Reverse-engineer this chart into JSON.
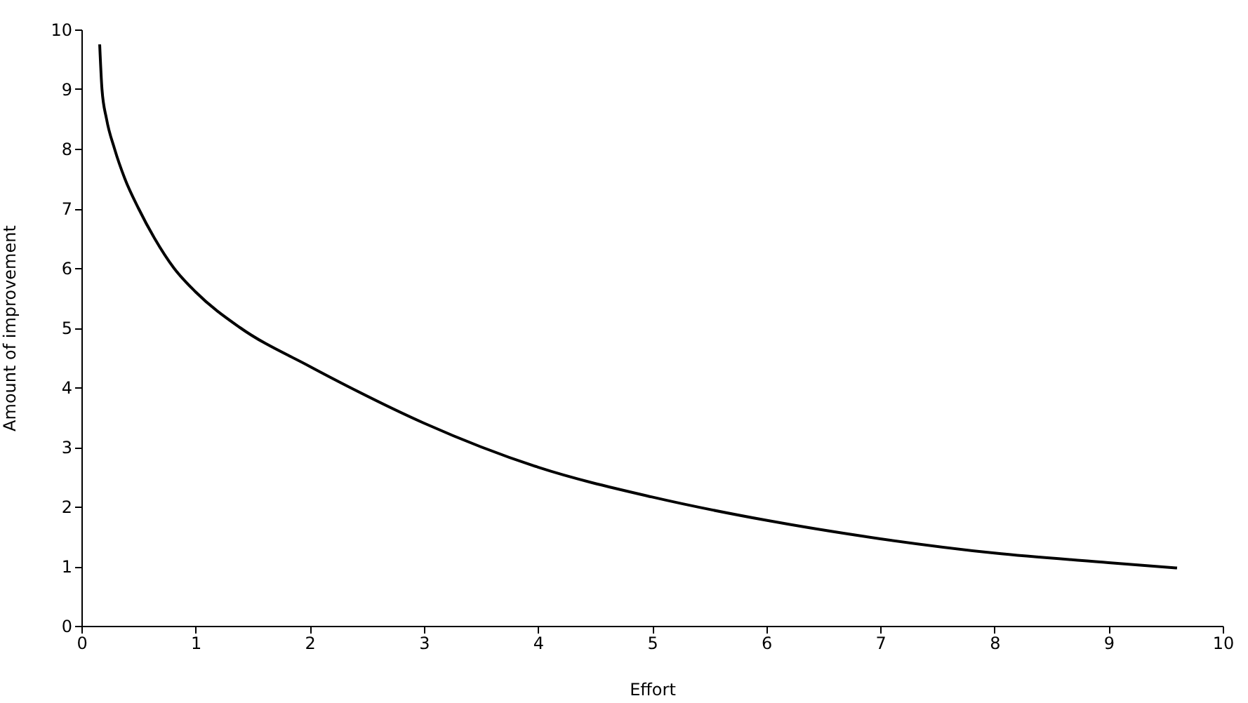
{
  "chart_data": {
    "type": "line",
    "xlabel": "Effort",
    "ylabel": "Amount of improvement",
    "x": [
      0.16,
      0.18,
      0.22,
      0.29,
      0.38,
      0.5,
      0.64,
      0.81,
      1,
      1.39,
      2,
      2.35,
      3,
      4,
      5,
      6,
      7,
      8,
      9,
      9.6
    ],
    "series": [
      {
        "color": "#000000",
        "values": [
          9.75,
          9,
          8.5,
          8,
          7.5,
          7,
          6.5,
          6,
          5.6,
          5,
          4.35,
          4,
          3.4,
          2.66,
          2.16,
          1.77,
          1.46,
          1.22,
          1.06,
          0.97
        ]
      }
    ],
    "xlim": [
      0,
      10
    ],
    "xticks": [
      0,
      1,
      2,
      3,
      4,
      5,
      6,
      7,
      8,
      9,
      10
    ],
    "ylim": [
      0,
      10
    ],
    "yticks": [
      0,
      1,
      2,
      3,
      4,
      5,
      6,
      7,
      8,
      9,
      10
    ],
    "grid": false,
    "marker": "none",
    "line_style": "solid"
  }
}
